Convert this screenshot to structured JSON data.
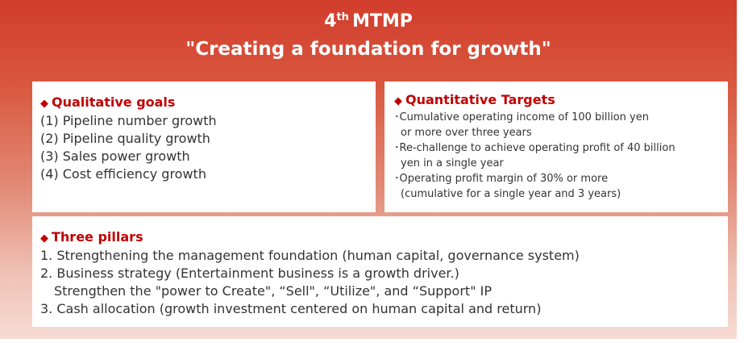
{
  "header": {
    "title": {
      "number": "4",
      "suffix": "th",
      "rest": "MTMP"
    },
    "subtitle": "\"Creating a foundation for growth\""
  },
  "qualitative": {
    "heading": "Qualitative goals",
    "items": [
      "(1) Pipeline number growth",
      "(2) Pipeline quality growth",
      "(3) Sales power growth",
      "(4) Cost efficiency growth"
    ]
  },
  "quantitative": {
    "heading": "Quantitative Targets",
    "items": [
      {
        "lines": [
          "Cumulative operating income of 100 billion yen",
          "or more over three years"
        ]
      },
      {
        "lines": [
          "Re-challenge to achieve operating profit of 40 billion",
          "yen in a single year"
        ]
      },
      {
        "lines": [
          "Operating profit margin of 30% or more",
          "(cumulative for a single year and 3 years)"
        ]
      }
    ]
  },
  "pillars": {
    "heading": "Three pillars",
    "lines": [
      "1. Strengthening the management foundation (human capital, governance system)",
      "2. Business strategy (Entertainment business is a growth driver.)",
      "Strengthen the \"power to Create\", “Sell\", “Utilize\", and “Support\" IP",
      "3. Cash allocation (growth investment centered on human capital and return)"
    ]
  }
}
